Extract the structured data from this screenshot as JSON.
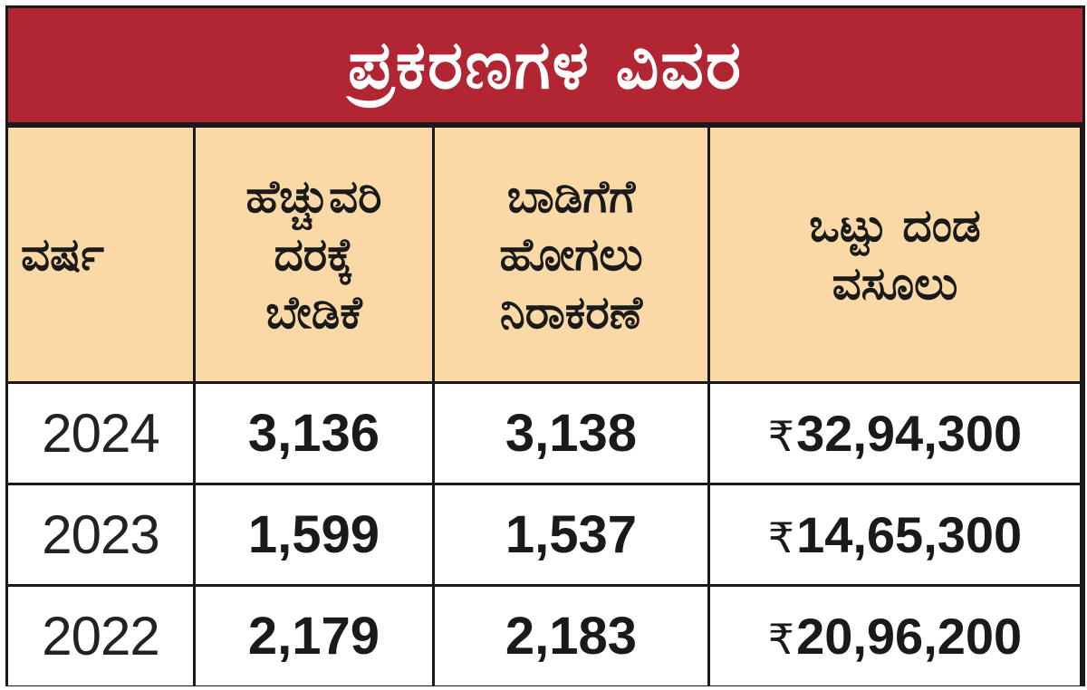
{
  "title": "ಪ್ರಕರಣಗಳ ವಿವರ",
  "colors": {
    "title_bg": "#b22532",
    "header_bg": "#fad9a6",
    "border": "#1a1a1a"
  },
  "headers": {
    "year": [
      "ವರ್ಷ"
    ],
    "excess_fare": [
      "ಹೆಚ್ಚುವರಿ",
      "ದರಕ್ಕೆ",
      "ಬೇಡಿಕೆ"
    ],
    "refusal": [
      "ಬಾಡಿಗೆಗೆ",
      "ಹೋಗಲು",
      "ನಿರಾಕರಣೆ"
    ],
    "fine_total": [
      "ಒಟ್ಟು ದಂಡ",
      "ವಸೂಲು"
    ]
  },
  "currency_symbol": "₹",
  "rows": [
    {
      "year": "2024",
      "excess_fare": "3,136",
      "refusal": "3,138",
      "fine": "32,94,300"
    },
    {
      "year": "2023",
      "excess_fare": "1,599",
      "refusal": "1,537",
      "fine": "14,65,300"
    },
    {
      "year": "2022",
      "excess_fare": "2,179",
      "refusal": "2,183",
      "fine": "20,96,200"
    }
  ]
}
